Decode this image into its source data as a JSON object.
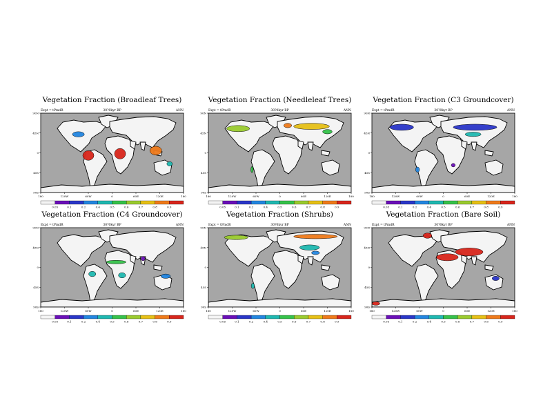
{
  "figure": {
    "colormap": [
      "#f4f4f4",
      "#6a0fb8",
      "#2a36c8",
      "#2386e0",
      "#1fb8b0",
      "#35c24a",
      "#9acb2e",
      "#e6c016",
      "#ef7a1a",
      "#d8261c"
    ],
    "ocean_color": "#a6a6a6",
    "land_color": "#f4f4f4"
  },
  "chart_data": [
    {
      "type": "heatmap",
      "title": "Vegetation Fraction (Broadleaf Trees)",
      "expt_label": "Expt = tPmdR",
      "time_label": "30?0kyr BP",
      "season_label": "ANN",
      "xlim": [
        -180,
        180
      ],
      "ylim": [
        -90,
        90
      ],
      "x_ticks": [
        "180",
        "120W",
        "60W",
        "0",
        "60E",
        "120E",
        "180"
      ],
      "y_ticks": [
        "90N",
        "45N",
        "0",
        "45S",
        "90S"
      ],
      "colorbar_labels": [
        "0.05",
        "0.1",
        "0.2",
        "0.4",
        "0.5",
        "0.6",
        "0.7",
        "0.8",
        "0.9"
      ],
      "value_patches": [
        {
          "region": "Amazon",
          "lon": -60,
          "lat": -6,
          "level": 9,
          "w": 28,
          "h": 22
        },
        {
          "region": "Central Africa",
          "lon": 20,
          "lat": -2,
          "level": 9,
          "w": 28,
          "h": 24
        },
        {
          "region": "Southeast Asia",
          "lon": 110,
          "lat": 5,
          "level": 8,
          "w": 30,
          "h": 20
        },
        {
          "region": "Eastern North America",
          "lon": -85,
          "lat": 42,
          "level": 3,
          "w": 30,
          "h": 12
        },
        {
          "region": "Australia coast",
          "lon": 145,
          "lat": -25,
          "level": 4,
          "w": 14,
          "h": 10
        }
      ]
    },
    {
      "type": "heatmap",
      "title": "Vegetation Fraction (Needleleaf Trees)",
      "expt_label": "Expt = tPmdR",
      "time_label": "30?0kyr BP",
      "season_label": "ANN",
      "xlim": [
        -180,
        180
      ],
      "ylim": [
        -90,
        90
      ],
      "x_ticks": [
        "180",
        "120W",
        "60W",
        "0",
        "60E",
        "120E",
        "180"
      ],
      "y_ticks": [
        "90N",
        "45N",
        "0",
        "45S",
        "90S"
      ],
      "colorbar_labels": [
        "0.05",
        "0.1",
        "0.2",
        "0.4",
        "0.5",
        "0.6",
        "0.7",
        "0.8",
        "0.9"
      ],
      "value_patches": [
        {
          "region": "Canada boreal",
          "lon": -105,
          "lat": 55,
          "level": 6,
          "w": 58,
          "h": 14
        },
        {
          "region": "Siberia boreal",
          "lon": 80,
          "lat": 60,
          "level": 7,
          "w": 90,
          "h": 14
        },
        {
          "region": "Scandinavia",
          "lon": 20,
          "lat": 62,
          "level": 8,
          "w": 20,
          "h": 10
        },
        {
          "region": "East Asia",
          "lon": 120,
          "lat": 48,
          "level": 5,
          "w": 24,
          "h": 10
        },
        {
          "region": "Andes",
          "lon": -70,
          "lat": -38,
          "level": 5,
          "w": 6,
          "h": 14
        }
      ]
    },
    {
      "type": "heatmap",
      "title": "Vegetation Fraction (C3 Groundcover)",
      "expt_label": "Expt = tPmdR",
      "time_label": "30?0kyr BP",
      "season_label": "ANN",
      "xlim": [
        -180,
        180
      ],
      "ylim": [
        -90,
        90
      ],
      "x_ticks": [
        "180",
        "120W",
        "60W",
        "0",
        "60E",
        "120E",
        "180"
      ],
      "y_ticks": [
        "90N",
        "45N",
        "0",
        "45S",
        "90S"
      ],
      "colorbar_labels": [
        "0.05",
        "0.1",
        "0.2",
        "0.4",
        "0.5",
        "0.6",
        "0.7",
        "0.8",
        "0.9"
      ],
      "value_patches": [
        {
          "region": "North America",
          "lon": -105,
          "lat": 58,
          "level": 2,
          "w": 60,
          "h": 14
        },
        {
          "region": "Eurasia",
          "lon": 80,
          "lat": 58,
          "level": 2,
          "w": 110,
          "h": 14
        },
        {
          "region": "Central Asia",
          "lon": 75,
          "lat": 42,
          "level": 4,
          "w": 40,
          "h": 10
        },
        {
          "region": "Argentina",
          "lon": -65,
          "lat": -38,
          "level": 3,
          "w": 10,
          "h": 12
        },
        {
          "region": "South Africa",
          "lon": 25,
          "lat": -28,
          "level": 1,
          "w": 10,
          "h": 8
        }
      ]
    },
    {
      "type": "heatmap",
      "title": "Vegetation Fraction (C4 Groundcover)",
      "expt_label": "Expt = tPmdR",
      "time_label": "30?0kyr BP",
      "season_label": "ANN",
      "xlim": [
        -180,
        180
      ],
      "ylim": [
        -90,
        90
      ],
      "x_ticks": [
        "180",
        "120W",
        "60W",
        "0",
        "60E",
        "120E",
        "180"
      ],
      "y_ticks": [
        "90N",
        "45N",
        "0",
        "45S",
        "90S"
      ],
      "colorbar_labels": [
        "0.05",
        "0.1",
        "0.2",
        "0.4",
        "0.5",
        "0.6",
        "0.7",
        "0.8",
        "0.9"
      ],
      "value_patches": [
        {
          "region": "Sahel",
          "lon": 10,
          "lat": 12,
          "level": 5,
          "w": 50,
          "h": 8
        },
        {
          "region": "Brazil cerrado",
          "lon": -50,
          "lat": -15,
          "level": 4,
          "w": 18,
          "h": 12
        },
        {
          "region": "Southern Africa",
          "lon": 25,
          "lat": -18,
          "level": 4,
          "w": 18,
          "h": 12
        },
        {
          "region": "Northern Australia",
          "lon": 135,
          "lat": -20,
          "level": 3,
          "w": 24,
          "h": 10
        },
        {
          "region": "India",
          "lon": 78,
          "lat": 20,
          "level": 1,
          "w": 10,
          "h": 10
        }
      ]
    },
    {
      "type": "heatmap",
      "title": "Vegetation Fraction (Shrubs)",
      "expt_label": "Expt = tPmdR",
      "time_label": "30?0kyr BP",
      "season_label": "ANN",
      "xlim": [
        -180,
        180
      ],
      "ylim": [
        -90,
        90
      ],
      "x_ticks": [
        "180",
        "120W",
        "60W",
        "0",
        "60E",
        "120E",
        "180"
      ],
      "y_ticks": [
        "90N",
        "45N",
        "0",
        "45S",
        "90S"
      ],
      "colorbar_labels": [
        "0.05",
        "0.1",
        "0.2",
        "0.4",
        "0.5",
        "0.6",
        "0.7",
        "0.8",
        "0.9"
      ],
      "value_patches": [
        {
          "region": "Arctic Siberia",
          "lon": 90,
          "lat": 70,
          "level": 8,
          "w": 110,
          "h": 10
        },
        {
          "region": "Arctic North America",
          "lon": -110,
          "lat": 68,
          "level": 6,
          "w": 60,
          "h": 10
        },
        {
          "region": "Central Asia",
          "lon": 75,
          "lat": 45,
          "level": 4,
          "w": 50,
          "h": 12
        },
        {
          "region": "Tibet",
          "lon": 90,
          "lat": 33,
          "level": 3,
          "w": 20,
          "h": 8
        },
        {
          "region": "Patagonia",
          "lon": -68,
          "lat": -42,
          "level": 4,
          "w": 8,
          "h": 12
        }
      ]
    },
    {
      "type": "heatmap",
      "title": "Vegetation Fraction (Bare Soil)",
      "expt_label": "Expt = tPmdR",
      "time_label": "30?0kyr BP",
      "season_label": "ANN",
      "xlim": [
        -180,
        180
      ],
      "ylim": [
        -90,
        90
      ],
      "x_ticks": [
        "180",
        "120W",
        "60W",
        "0",
        "60E",
        "120E",
        "180"
      ],
      "y_ticks": [
        "90N",
        "45N",
        "0",
        "45S",
        "90S"
      ],
      "colorbar_labels": [
        "0.05",
        "0.1",
        "0.2",
        "0.4",
        "0.5",
        "0.6",
        "0.7",
        "0.8",
        "0.9"
      ],
      "value_patches": [
        {
          "region": "Sahara",
          "lon": 10,
          "lat": 23,
          "level": 9,
          "w": 55,
          "h": 16
        },
        {
          "region": "Arabia to Central Asia",
          "lon": 65,
          "lat": 35,
          "level": 9,
          "w": 70,
          "h": 18
        },
        {
          "region": "Greenland",
          "lon": -40,
          "lat": 72,
          "level": 9,
          "w": 22,
          "h": 12
        },
        {
          "region": "Antarctica edge",
          "lon": -170,
          "lat": -82,
          "level": 9,
          "w": 20,
          "h": 8
        },
        {
          "region": "Australia interior",
          "lon": 132,
          "lat": -25,
          "level": 2,
          "w": 18,
          "h": 10
        }
      ]
    }
  ]
}
